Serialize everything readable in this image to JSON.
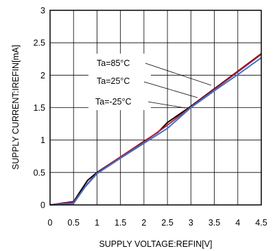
{
  "chart_data": {
    "type": "line",
    "title": "",
    "xlabel": "SUPPLY VOLTAGE:REFIN[V]",
    "ylabel": "SUPPLY CURRENT:IREFIN[mA]",
    "xlim": [
      0,
      4.5
    ],
    "ylim": [
      0,
      3
    ],
    "xticks": [
      "0",
      "0.5",
      "1",
      "1.5",
      "2",
      "2.5",
      "3",
      "3.5",
      "4",
      "4.5"
    ],
    "yticks": [
      "0",
      "0.5",
      "1",
      "1.5",
      "2",
      "2.5",
      "3"
    ],
    "grid": true,
    "legend": "none",
    "annotations": [
      "Ta=85°C",
      "Ta=25°C",
      "Ta=-25°C"
    ],
    "series": [
      {
        "name": "Ta=85°C",
        "color": "#000000",
        "x": [
          0,
          0.5,
          0.8,
          1.0,
          1.5,
          2.0,
          2.3,
          2.5,
          3.0,
          3.5,
          4.0,
          4.5
        ],
        "y": [
          0,
          0.05,
          0.38,
          0.5,
          0.74,
          0.98,
          1.12,
          1.27,
          1.52,
          1.79,
          2.06,
          2.33
        ]
      },
      {
        "name": "Ta=25°C",
        "color": "#c0202a",
        "x": [
          0,
          0.5,
          0.8,
          1.0,
          1.5,
          2.0,
          2.5,
          3.0,
          3.5,
          4.0,
          4.5
        ],
        "y": [
          0,
          0.04,
          0.33,
          0.49,
          0.74,
          0.97,
          1.23,
          1.51,
          1.78,
          2.05,
          2.32
        ]
      },
      {
        "name": "Ta=-25°C",
        "color": "#3b6fd8",
        "x": [
          0,
          0.5,
          0.75,
          1.0,
          1.5,
          2.0,
          2.5,
          3.0,
          3.5,
          4.0,
          4.5
        ],
        "y": [
          0,
          0.02,
          0.28,
          0.48,
          0.72,
          0.95,
          1.18,
          1.5,
          1.76,
          2.01,
          2.27
        ]
      }
    ]
  }
}
